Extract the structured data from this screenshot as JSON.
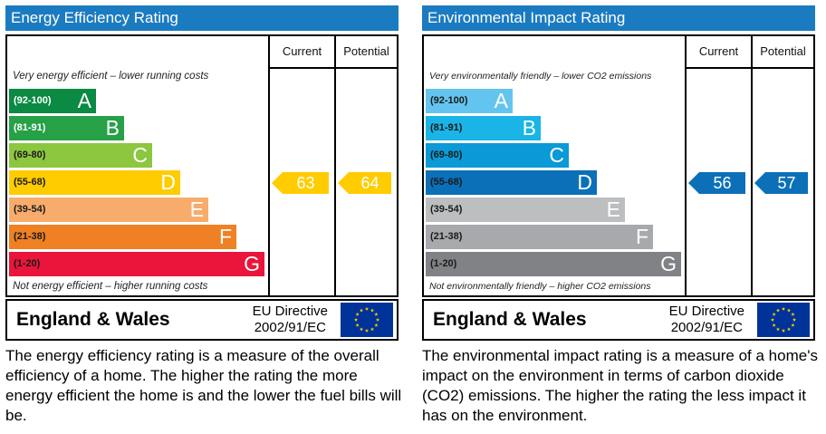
{
  "chart_data": [
    {
      "type": "bar",
      "title": "Energy Efficiency Rating",
      "columns": [
        "Current",
        "Potential"
      ],
      "top_note": "Very energy efficient – lower running costs",
      "bottom_note": "Not energy efficient – higher running costs",
      "bands": [
        {
          "range": "(92-100)",
          "letter": "A",
          "color": "#0a8a43",
          "text_color": "#ffffff"
        },
        {
          "range": "(81-91)",
          "letter": "B",
          "color": "#27a147",
          "text_color": "#ffffff"
        },
        {
          "range": "(69-80)",
          "letter": "C",
          "color": "#8dc63f",
          "text_color": "#1a1a1a"
        },
        {
          "range": "(55-68)",
          "letter": "D",
          "color": "#ffcc00",
          "text_color": "#1a1a1a"
        },
        {
          "range": "(39-54)",
          "letter": "E",
          "color": "#f7ac6b",
          "text_color": "#1a1a1a"
        },
        {
          "range": "(21-38)",
          "letter": "F",
          "color": "#ef8023",
          "text_color": "#1a1a1a"
        },
        {
          "range": "(1-20)",
          "letter": "G",
          "color": "#e9153b",
          "text_color": "#1a1a1a"
        }
      ],
      "current": {
        "value": 63,
        "label": "63",
        "band": "D",
        "color": "#ffcc00",
        "text_color": "#ffffff"
      },
      "potential": {
        "value": 64,
        "label": "64",
        "band": "D",
        "color": "#ffcc00",
        "text_color": "#ffffff"
      }
    },
    {
      "type": "bar",
      "title": "Environmental Impact Rating",
      "columns": [
        "Current",
        "Potential"
      ],
      "top_note": "Very environmentally friendly – lower CO2 emissions",
      "bottom_note": "Not environmentally friendly – higher CO2 emissions",
      "bands": [
        {
          "range": "(92-100)",
          "letter": "A",
          "color": "#63c5ef",
          "text_color": "#1a1a1a"
        },
        {
          "range": "(81-91)",
          "letter": "B",
          "color": "#1ab4e7",
          "text_color": "#1a1a1a"
        },
        {
          "range": "(69-80)",
          "letter": "C",
          "color": "#0a9ad7",
          "text_color": "#1a1a1a"
        },
        {
          "range": "(55-68)",
          "letter": "D",
          "color": "#0b70b8",
          "text_color": "#1a1a1a"
        },
        {
          "range": "(39-54)",
          "letter": "E",
          "color": "#bcbec0",
          "text_color": "#1a1a1a"
        },
        {
          "range": "(21-38)",
          "letter": "F",
          "color": "#a7a9ac",
          "text_color": "#1a1a1a"
        },
        {
          "range": "(1-20)",
          "letter": "G",
          "color": "#808285",
          "text_color": "#1a1a1a"
        }
      ],
      "current": {
        "value": 56,
        "label": "56",
        "band": "D",
        "color": "#0b70b8",
        "text_color": "#ffffff"
      },
      "potential": {
        "value": 57,
        "label": "57",
        "band": "D",
        "color": "#0b70b8",
        "text_color": "#ffffff"
      }
    }
  ],
  "footers": [
    {
      "region": "England & Wales",
      "directive_line1": "EU Directive",
      "directive_line2": "2002/91/EC",
      "flag_icon": "eu-flag-icon"
    },
    {
      "region": "England & Wales",
      "directive_line1": "EU Directive",
      "directive_line2": "2002/91/EC",
      "flag_icon": "eu-flag-icon"
    }
  ],
  "captions": [
    "The energy efficiency rating is a measure of the overall efficiency of a home.  The higher the rating the more energy efficient the home is and the lower the fuel bills will be.",
    "The environmental impact rating is a measure of a home's impact on the environment in terms of carbon dioxide (CO2) emissions.  The higher the rating the less impact it has on the environment."
  ]
}
